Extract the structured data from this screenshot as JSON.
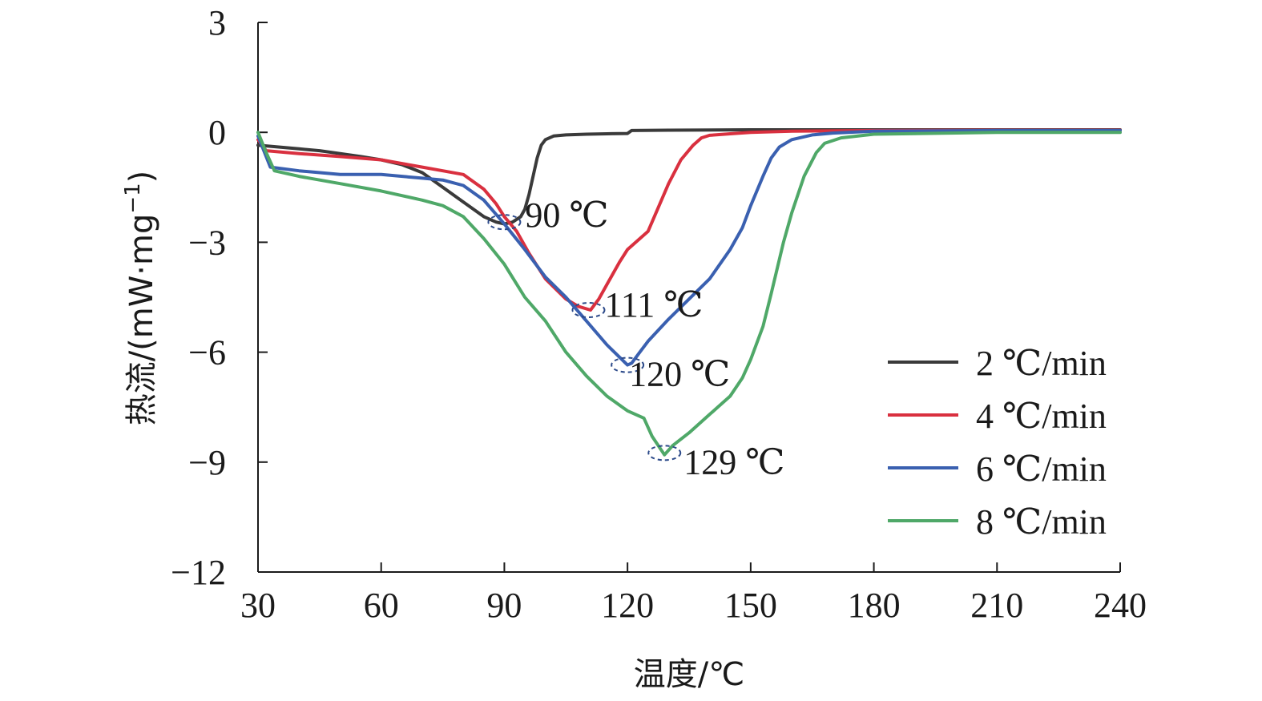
{
  "chart_data": {
    "type": "line",
    "xlabel": "温度/℃",
    "ylabel": "热流/(mW·mg",
    "ylabel_sup": "−1",
    "ylabel_close": ")",
    "xlim": [
      30,
      240
    ],
    "ylim": [
      -12,
      3
    ],
    "xticks": [
      30,
      60,
      90,
      120,
      150,
      180,
      210,
      240
    ],
    "xtick_labels": [
      "30",
      "60",
      "90",
      "120",
      "150",
      "180",
      "210",
      "240"
    ],
    "yticks": [
      3,
      0,
      -3,
      -6,
      -9,
      -12
    ],
    "ytick_labels": [
      "3",
      "0",
      "−3",
      "−6",
      "−9",
      "−12"
    ],
    "grid": false,
    "legend_position": "bottom-right",
    "series": [
      {
        "name": "2 ℃/min",
        "color": "#3a3a3a",
        "x": [
          30,
          35,
          40,
          45,
          50,
          55,
          60,
          65,
          70,
          75,
          80,
          85,
          88,
          90,
          92,
          94,
          95,
          96,
          97,
          98,
          99,
          100,
          102,
          105,
          110,
          115,
          120,
          121,
          130,
          150,
          180,
          210,
          240
        ],
        "y": [
          -0.35,
          -0.4,
          -0.45,
          -0.5,
          -0.58,
          -0.66,
          -0.75,
          -0.88,
          -1.1,
          -1.5,
          -1.9,
          -2.3,
          -2.45,
          -2.5,
          -2.45,
          -2.3,
          -2.1,
          -1.7,
          -1.2,
          -0.7,
          -0.35,
          -0.2,
          -0.1,
          -0.07,
          -0.05,
          -0.04,
          -0.03,
          0.05,
          0.06,
          0.07,
          0.07,
          0.07,
          0.07
        ]
      },
      {
        "name": "4 ℃/min",
        "color": "#d9303f",
        "x": [
          30,
          32,
          40,
          50,
          60,
          70,
          75,
          80,
          85,
          88,
          90,
          93,
          96,
          100,
          105,
          108,
          111,
          113,
          115,
          118,
          120,
          125,
          130,
          133,
          136,
          138,
          140,
          145,
          150,
          160,
          180,
          210,
          240
        ],
        "y": [
          -0.2,
          -0.5,
          -0.58,
          -0.66,
          -0.75,
          -0.95,
          -1.05,
          -1.15,
          -1.55,
          -1.95,
          -2.3,
          -2.7,
          -3.3,
          -4.0,
          -4.55,
          -4.75,
          -4.85,
          -4.55,
          -4.15,
          -3.55,
          -3.2,
          -2.7,
          -1.4,
          -0.75,
          -0.35,
          -0.15,
          -0.08,
          -0.04,
          0.0,
          0.03,
          0.05,
          0.06,
          0.06
        ]
      },
      {
        "name": "6 ℃/min",
        "color": "#3a60b0",
        "x": [
          30,
          33,
          40,
          50,
          60,
          70,
          75,
          80,
          85,
          90,
          95,
          100,
          105,
          110,
          115,
          120,
          121,
          123,
          125,
          130,
          140,
          145,
          148,
          150,
          153,
          155,
          157,
          160,
          165,
          170,
          180,
          210,
          240
        ],
        "y": [
          -0.1,
          -0.95,
          -1.05,
          -1.15,
          -1.15,
          -1.25,
          -1.3,
          -1.45,
          -1.85,
          -2.5,
          -3.2,
          -3.95,
          -4.5,
          -5.15,
          -5.8,
          -6.35,
          -6.3,
          -6.0,
          -5.7,
          -5.1,
          -4.0,
          -3.2,
          -2.6,
          -2.0,
          -1.2,
          -0.7,
          -0.4,
          -0.2,
          -0.07,
          -0.02,
          0.03,
          0.05,
          0.05
        ]
      },
      {
        "name": "8 ℃/min",
        "color": "#4fa868",
        "x": [
          30,
          32,
          34,
          40,
          50,
          60,
          70,
          75,
          80,
          85,
          90,
          95,
          100,
          105,
          110,
          115,
          120,
          124,
          126,
          129,
          131,
          135,
          140,
          145,
          148,
          150,
          153,
          155,
          158,
          160,
          163,
          166,
          168,
          172,
          180,
          210,
          240
        ],
        "y": [
          0.0,
          -0.55,
          -1.05,
          -1.2,
          -1.4,
          -1.6,
          -1.85,
          -2.0,
          -2.3,
          -2.9,
          -3.6,
          -4.5,
          -5.15,
          -6.0,
          -6.65,
          -7.2,
          -7.6,
          -7.8,
          -8.3,
          -8.8,
          -8.55,
          -8.2,
          -7.7,
          -7.2,
          -6.7,
          -6.2,
          -5.3,
          -4.4,
          -3.0,
          -2.2,
          -1.2,
          -0.55,
          -0.3,
          -0.15,
          -0.05,
          0.0,
          0.0
        ]
      }
    ],
    "annotations": [
      {
        "text": "90 ℃",
        "x": 90,
        "y": -2.45
      },
      {
        "text": "111 ℃",
        "x": 110.5,
        "y": -4.85
      },
      {
        "text": "120 ℃",
        "x": 120,
        "y": -6.35
      },
      {
        "text": "129 ℃",
        "x": 129,
        "y": -8.75
      }
    ]
  }
}
